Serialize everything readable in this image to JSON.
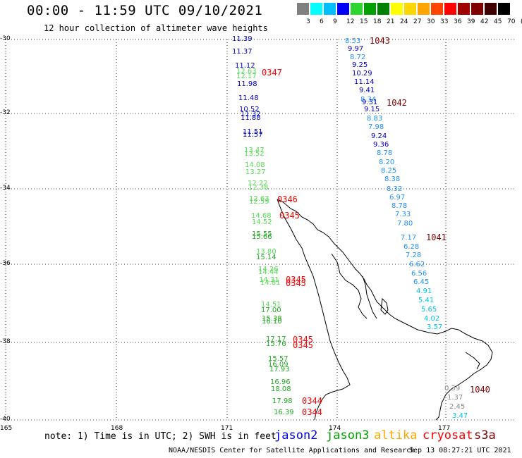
{
  "header": {
    "title": "00:00 - 11:59 UTC 09/10/2021",
    "subtitle": "12 hour collection of altimeter wave heights"
  },
  "color_scale": {
    "labels": [
      "3",
      "6",
      "9",
      "12",
      "15",
      "18",
      "21",
      "24",
      "27",
      "30",
      "33",
      "36",
      "39",
      "42",
      "45",
      "70",
      "(ft)"
    ],
    "colors": [
      "#808080",
      "#00ffff",
      "#00bfff",
      "#0000ff",
      "#2fd52f",
      "#00a000",
      "#008000",
      "#ffff00",
      "#ffd700",
      "#ffa500",
      "#ff4500",
      "#ff0000",
      "#a00000",
      "#800000",
      "#400000",
      "#000000"
    ]
  },
  "axes": {
    "lat_labels": [
      "-30",
      "-32",
      "-34",
      "-36",
      "-38",
      "-40"
    ],
    "lon_labels": [
      "165",
      "168",
      "171",
      "174",
      "177"
    ]
  },
  "tracks": {
    "west": [
      {
        "v": "11.39",
        "c": "#0000cc"
      },
      {
        "v": "11.37",
        "c": "#0000cc"
      },
      {
        "v": "11.12",
        "c": "#0000cc"
      },
      {
        "v": "12.63",
        "c": "#55dd55"
      },
      {
        "v": "12.17",
        "c": "#55dd55"
      },
      {
        "v": "11.98",
        "c": "#0000cc"
      },
      {
        "v": "11.48",
        "c": "#0000cc"
      },
      {
        "v": "10.52",
        "c": "#0000cc"
      },
      {
        "v": "11.32",
        "c": "#0000cc"
      },
      {
        "v": "11.88",
        "c": "#0000cc"
      },
      {
        "v": "11.51",
        "c": "#0000cc"
      },
      {
        "v": "11.57",
        "c": "#0000cc"
      },
      {
        "v": "13.47",
        "c": "#55dd55"
      },
      {
        "v": "13.52",
        "c": "#55dd55"
      },
      {
        "v": "14.08",
        "c": "#55dd55"
      },
      {
        "v": "13.27",
        "c": "#55dd55"
      },
      {
        "v": "12.22",
        "c": "#55dd55"
      },
      {
        "v": "12.38",
        "c": "#55dd55"
      },
      {
        "v": "12.63",
        "c": "#55dd55"
      },
      {
        "v": "12.59",
        "c": "#55dd55"
      },
      {
        "v": "14.68",
        "c": "#55dd55"
      },
      {
        "v": "14.52",
        "c": "#55dd55"
      },
      {
        "v": "15.55",
        "c": "#22aa22"
      },
      {
        "v": "15.66",
        "c": "#22aa22"
      },
      {
        "v": "13.80",
        "c": "#55dd55"
      },
      {
        "v": "15.14",
        "c": "#22aa22"
      },
      {
        "v": "14.26",
        "c": "#55dd55"
      },
      {
        "v": "14.44",
        "c": "#55dd55"
      },
      {
        "v": "14.31",
        "c": "#55dd55"
      },
      {
        "v": "14.81",
        "c": "#55dd55"
      },
      {
        "v": "14.51",
        "c": "#55dd55"
      },
      {
        "v": "17.00",
        "c": "#22aa22"
      },
      {
        "v": "15.38",
        "c": "#22aa22"
      },
      {
        "v": "16.10",
        "c": "#22aa22"
      },
      {
        "v": "17.17",
        "c": "#22aa22"
      },
      {
        "v": "15.76",
        "c": "#22aa22"
      },
      {
        "v": "15.57",
        "c": "#22aa22"
      },
      {
        "v": "16.09",
        "c": "#22aa22"
      },
      {
        "v": "17.93",
        "c": "#22aa22"
      },
      {
        "v": "16.96",
        "c": "#22aa22"
      },
      {
        "v": "18.08",
        "c": "#22aa22"
      },
      {
        "v": "17.98",
        "c": "#22aa22"
      },
      {
        "v": "16.39",
        "c": "#22aa22"
      }
    ],
    "east": [
      {
        "v": "8.53",
        "c": "#1e90ff"
      },
      {
        "v": "9.97",
        "c": "#0000cc"
      },
      {
        "v": "8.72",
        "c": "#1e90ff"
      },
      {
        "v": "9.25",
        "c": "#0000cc"
      },
      {
        "v": "10.29",
        "c": "#0000cc"
      },
      {
        "v": "11.14",
        "c": "#0000cc"
      },
      {
        "v": "9.41",
        "c": "#0000cc"
      },
      {
        "v": "8.34",
        "c": "#1e90ff"
      },
      {
        "v": "9.31",
        "c": "#0000cc"
      },
      {
        "v": "9.15",
        "c": "#0000cc"
      },
      {
        "v": "8.83",
        "c": "#1e90ff"
      },
      {
        "v": "7.98",
        "c": "#1e90ff"
      },
      {
        "v": "9.24",
        "c": "#0000cc"
      },
      {
        "v": "9.36",
        "c": "#0000cc"
      },
      {
        "v": "8.78",
        "c": "#1e90ff"
      },
      {
        "v": "8.20",
        "c": "#1e90ff"
      },
      {
        "v": "8.25",
        "c": "#1e90ff"
      },
      {
        "v": "8.38",
        "c": "#1e90ff"
      },
      {
        "v": "8.32",
        "c": "#1e90ff"
      },
      {
        "v": "6.97",
        "c": "#1e90ff"
      },
      {
        "v": "8.78",
        "c": "#1e90ff"
      },
      {
        "v": "7.33",
        "c": "#1e90ff"
      },
      {
        "v": "7.80",
        "c": "#1e90ff"
      },
      {
        "v": "7.17",
        "c": "#1e90ff"
      },
      {
        "v": "6.28",
        "c": "#1e90ff"
      },
      {
        "v": "7.28",
        "c": "#1e90ff"
      },
      {
        "v": "6.62",
        "c": "#1e90ff"
      },
      {
        "v": "6.56",
        "c": "#1e90ff"
      },
      {
        "v": "6.45",
        "c": "#1e90ff"
      },
      {
        "v": "4.91",
        "c": "#00c8e6"
      },
      {
        "v": "5.41",
        "c": "#00c8e6"
      },
      {
        "v": "5.65",
        "c": "#00c8e6"
      },
      {
        "v": "4.02",
        "c": "#00c8e6"
      },
      {
        "v": "3.57",
        "c": "#00c8e6"
      },
      {
        "v": "0.39",
        "c": "#888888"
      },
      {
        "v": "1.37",
        "c": "#888888"
      },
      {
        "v": "2.45",
        "c": "#888888"
      },
      {
        "v": "3.47",
        "c": "#00c8e6"
      }
    ]
  },
  "time_labels": [
    {
      "t": "0347",
      "c": "#ff0000"
    },
    {
      "t": "0346",
      "c": "#ff0000"
    },
    {
      "t": "0345",
      "c": "#ff0000"
    },
    {
      "t": "0345",
      "c": "#ff0000"
    },
    {
      "t": "0345",
      "c": "#ff0000"
    },
    {
      "t": "0345",
      "c": "#ff0000"
    },
    {
      "t": "0345",
      "c": "#ff0000"
    },
    {
      "t": "0344",
      "c": "#ff0000"
    },
    {
      "t": "0344",
      "c": "#ff0000"
    },
    {
      "t": "1043",
      "c": "#800000"
    },
    {
      "t": "1042",
      "c": "#800000"
    },
    {
      "t": "1041",
      "c": "#800000"
    },
    {
      "t": "1040",
      "c": "#800000"
    }
  ],
  "footer": {
    "note": "note: 1) Time is in UTC; 2) SWH is in feet",
    "legend": [
      {
        "label": "jason2",
        "c": "#0000ff"
      },
      {
        "label": "jason3",
        "c": "#00a000"
      },
      {
        "label": "altika",
        "c": "#ffa500"
      },
      {
        "label": "cryosat",
        "c": "#ff0000"
      },
      {
        "label": "s3a",
        "c": "#800000"
      }
    ],
    "credit": "NOAA/NESDIS Center for Satellite Applications and Research",
    "timestamp": "Sep 13 08:27:21 UTC 2021"
  }
}
